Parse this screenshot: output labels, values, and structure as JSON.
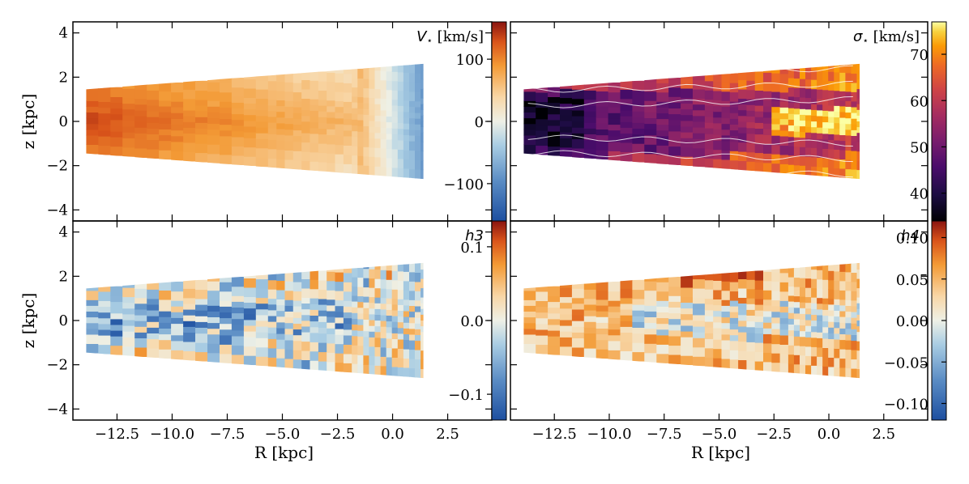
{
  "chart_data": [
    {
      "type": "heatmap",
      "panel": "velocity",
      "title": "V⋆ [km/s]",
      "title_symbol": "V",
      "title_sub": "⋆",
      "title_unit": "[km/s]",
      "xlabel": "",
      "ylabel": "z [kpc]",
      "xlim": [
        -14.5,
        4.5
      ],
      "ylim": [
        -4.5,
        4.5
      ],
      "xticks": [],
      "yticks": [
        "−4",
        "−2",
        "0",
        "2",
        "4"
      ],
      "ytick_values": [
        -4,
        -2,
        0,
        2,
        4
      ],
      "colormap": "diverging-blue-orange-red",
      "clim": [
        -160,
        160
      ],
      "colorbar_ticks": [
        "100",
        "0",
        "−100"
      ],
      "colorbar_tick_values": [
        100,
        0,
        -100
      ]
    },
    {
      "type": "heatmap",
      "panel": "dispersion",
      "title": "σ⋆ [km/s]",
      "title_symbol": "σ",
      "title_sub": "⋆",
      "title_unit": "[km/s]",
      "xlabel": "",
      "ylabel": "",
      "xlim": [
        -14.5,
        4.5
      ],
      "ylim": [
        -4.5,
        4.5
      ],
      "xticks": [],
      "yticks": [],
      "colormap": "inferno",
      "clim": [
        34,
        77
      ],
      "colorbar_ticks": [
        "70",
        "60",
        "50",
        "40"
      ],
      "colorbar_tick_values": [
        70,
        60,
        50,
        40
      ]
    },
    {
      "type": "heatmap",
      "panel": "h3",
      "title": "h3",
      "xlabel": "R [kpc]",
      "ylabel": "z [kpc]",
      "xlim": [
        -14.5,
        4.5
      ],
      "ylim": [
        -4.5,
        4.5
      ],
      "xticks": [
        "−12.5",
        "−10.0",
        "−7.5",
        "−5.0",
        "−2.5",
        "0.0",
        "2.5"
      ],
      "xtick_values": [
        -12.5,
        -10.0,
        -7.5,
        -5.0,
        -2.5,
        0.0,
        2.5
      ],
      "yticks": [
        "−4",
        "−2",
        "0",
        "2",
        "4"
      ],
      "ytick_values": [
        -4,
        -2,
        0,
        2,
        4
      ],
      "colormap": "diverging-blue-orange-red",
      "clim": [
        -0.135,
        0.135
      ],
      "colorbar_ticks": [
        "0.1",
        "0.0",
        "−0.1"
      ],
      "colorbar_tick_values": [
        0.1,
        0.0,
        -0.1
      ]
    },
    {
      "type": "heatmap",
      "panel": "h4",
      "title": "h4",
      "xlabel": "R [kpc]",
      "ylabel": "",
      "xlim": [
        -14.5,
        4.5
      ],
      "ylim": [
        -4.5,
        4.5
      ],
      "xticks": [
        "−12.5",
        "−10.0",
        "−7.5",
        "−5.0",
        "−2.5",
        "0.0",
        "2.5"
      ],
      "xtick_values": [
        -12.5,
        -10.0,
        -7.5,
        -5.0,
        -2.5,
        0.0,
        2.5
      ],
      "yticks": [],
      "colormap": "diverging-blue-orange-red",
      "clim": [
        -0.12,
        0.12
      ],
      "colorbar_ticks": [
        "0.10",
        "0.05",
        "0.00",
        "−0.05",
        "−0.10"
      ],
      "colorbar_tick_values": [
        0.1,
        0.05,
        0.0,
        -0.05,
        -0.1
      ]
    }
  ]
}
